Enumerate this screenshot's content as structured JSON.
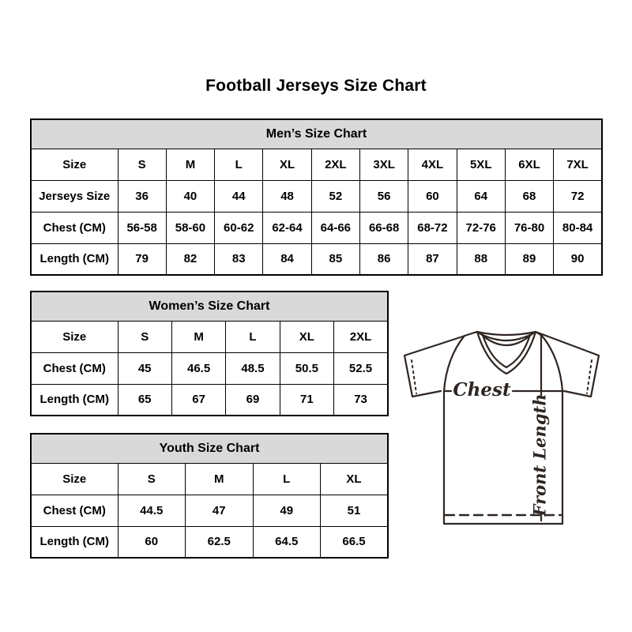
{
  "page": {
    "title": "Football Jerseys Size Chart"
  },
  "chart_data": [
    {
      "type": "table",
      "title": "Men’s Size Chart",
      "header_row": [
        "Size",
        "S",
        "M",
        "L",
        "XL",
        "2XL",
        "3XL",
        "4XL",
        "5XL",
        "6XL",
        "7XL"
      ],
      "rows": [
        [
          "Jerseys Size",
          "36",
          "40",
          "44",
          "48",
          "52",
          "56",
          "60",
          "64",
          "68",
          "72"
        ],
        [
          "Chest (CM)",
          "56-58",
          "58-60",
          "60-62",
          "62-64",
          "64-66",
          "66-68",
          "68-72",
          "72-76",
          "76-80",
          "80-84"
        ],
        [
          "Length (CM)",
          "79",
          "82",
          "83",
          "84",
          "85",
          "86",
          "87",
          "88",
          "89",
          "90"
        ]
      ]
    },
    {
      "type": "table",
      "title": "Women’s Size Chart",
      "header_row": [
        "Size",
        "S",
        "M",
        "L",
        "XL",
        "2XL"
      ],
      "rows": [
        [
          "Chest (CM)",
          "45",
          "46.5",
          "48.5",
          "50.5",
          "52.5"
        ],
        [
          "Length (CM)",
          "65",
          "67",
          "69",
          "71",
          "73"
        ]
      ]
    },
    {
      "type": "table",
      "title": "Youth Size Chart",
      "header_row": [
        "Size",
        "S",
        "M",
        "L",
        "XL"
      ],
      "rows": [
        [
          "Chest (CM)",
          "44.5",
          "47",
          "49",
          "51"
        ],
        [
          "Length (CM)",
          "60",
          "62.5",
          "64.5",
          "66.5"
        ]
      ]
    }
  ],
  "diagram": {
    "chest_label": "Chest",
    "front_length_label": "Front Length"
  },
  "colors": {
    "table_header_bg": "#d9d9d9",
    "table_border": "#000000",
    "line_art": "#2e2622"
  }
}
